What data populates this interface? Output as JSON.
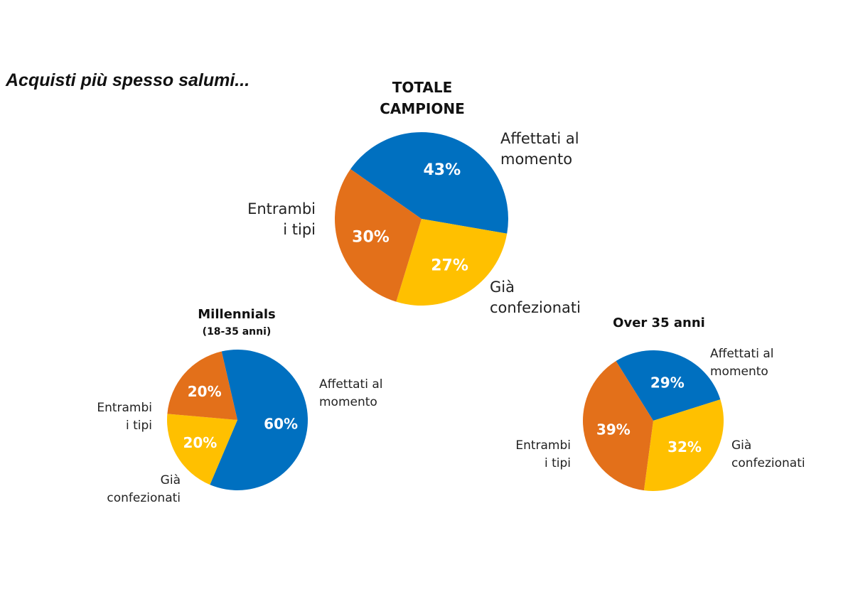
{
  "heading": "Acquisti più spesso salumi...",
  "colors": {
    "affettati": "#0070C0",
    "gia": "#FFC000",
    "entrambi": "#E3701A"
  },
  "chart_data": [
    {
      "type": "pie",
      "title": [
        "TOTALE",
        "CAMPIONE"
      ],
      "slices": [
        {
          "key": "affettati",
          "label": [
            "Affettati al",
            "momento"
          ],
          "value": 43,
          "value_label": "43%"
        },
        {
          "key": "gia",
          "label": [
            "Già",
            "confezionati"
          ],
          "value": 27,
          "value_label": "27%"
        },
        {
          "key": "entrambi",
          "label": [
            "Entrambi",
            "i tipi"
          ],
          "value": 30,
          "value_label": "30%"
        }
      ]
    },
    {
      "type": "pie",
      "title": [
        "Millennials",
        "(18-35 anni)"
      ],
      "slices": [
        {
          "key": "affettati",
          "label": [
            "Affettati al",
            "momento"
          ],
          "value": 60,
          "value_label": "60%"
        },
        {
          "key": "gia",
          "label": [
            "Già",
            "confezionati"
          ],
          "value": 20,
          "value_label": "20%"
        },
        {
          "key": "entrambi",
          "label": [
            "Entrambi",
            "i tipi"
          ],
          "value": 20,
          "value_label": "20%"
        }
      ]
    },
    {
      "type": "pie",
      "title": [
        "Over 35 anni"
      ],
      "slices": [
        {
          "key": "affettati",
          "label": [
            "Affettati al",
            "momento"
          ],
          "value": 29,
          "value_label": "29%"
        },
        {
          "key": "gia",
          "label": [
            "Già",
            "confezionati"
          ],
          "value": 32,
          "value_label": "32%"
        },
        {
          "key": "entrambi",
          "label": [
            "Entrambi",
            "i tipi"
          ],
          "value": 39,
          "value_label": "39%"
        }
      ]
    }
  ]
}
